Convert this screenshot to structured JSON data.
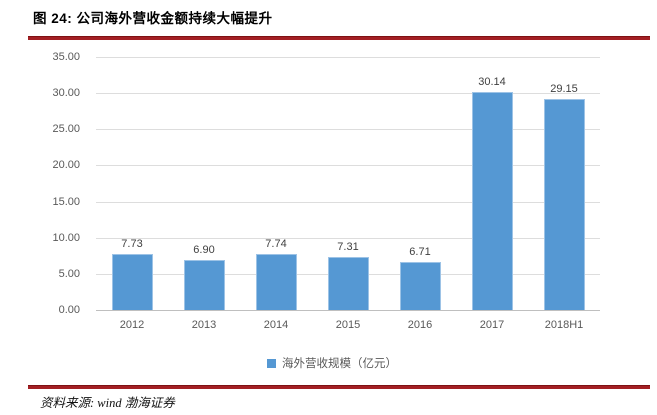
{
  "figure": {
    "title": "图 24: 公司海外营收金额持续大幅提升",
    "source": "资料来源: wind  渤海证券"
  },
  "chart_data": {
    "type": "bar",
    "title": "公司海外营收金额持续大幅提升",
    "categories": [
      "2012",
      "2013",
      "2014",
      "2015",
      "2016",
      "2017",
      "2018H1"
    ],
    "values": [
      7.73,
      6.9,
      7.74,
      7.31,
      6.71,
      30.14,
      29.15
    ],
    "value_labels": [
      "7.73",
      "6.90",
      "7.74",
      "7.31",
      "6.71",
      "30.14",
      "29.15"
    ],
    "legend": "海外营收规模（亿元）",
    "legend_position": "bottom",
    "xlabel": "",
    "ylabel": "",
    "ylim": [
      0,
      35
    ],
    "ytick_labels": [
      "0.00",
      "5.00",
      "10.00",
      "15.00",
      "20.00",
      "25.00",
      "30.00",
      "35.00"
    ],
    "grid": true
  },
  "colors": {
    "accent_rule": "#A31F23",
    "bar_fill": "#5598D3",
    "bar_border": "#9DC3E6",
    "axis_text": "#595959",
    "data_label": "#3F3F3F",
    "gridline": "#DDDDDD"
  }
}
